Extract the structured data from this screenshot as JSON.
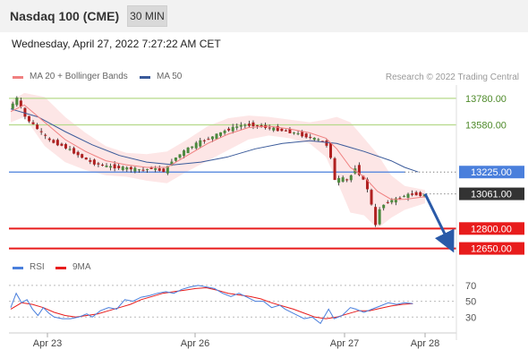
{
  "header": {
    "title": "Nasdaq 100 (CME)",
    "timeframe": "30 MIN"
  },
  "datetime": "Wednesday, April 27, 2022 7:27:22 AM CET",
  "legend": {
    "ma20": "MA 20 + Bollinger Bands",
    "ma50": "MA 50",
    "credit": "Research © 2022 Trading Central"
  },
  "rsi_legend": {
    "rsi": "RSI",
    "ma": "9MA"
  },
  "colors": {
    "ma20": "#f08080",
    "band": "#fde3e3",
    "ma50": "#3a5a9a",
    "resistance": "#b5d98a",
    "support": "#e81c1c",
    "pivot": "#4a7fdc",
    "current": "#333333",
    "up": "#4c8a3e",
    "down": "#b02020",
    "rsi": "#4a7fdc"
  },
  "chart_data": [
    {
      "type": "candlestick",
      "instrument": "Nasdaq 100 (CME)",
      "timeframe": "30 MIN",
      "x_ticks": [
        "Apr 23",
        "Apr 26",
        "Apr 27",
        "Apr 28"
      ],
      "ylim": [
        12600,
        13880
      ],
      "levels": [
        {
          "value": "13780.00",
          "kind": "resistance"
        },
        {
          "value": "13580.00",
          "kind": "resistance"
        },
        {
          "value": "13225.00",
          "kind": "pivot"
        },
        {
          "value": "13061.00",
          "kind": "current"
        },
        {
          "value": "12800.00",
          "kind": "support"
        },
        {
          "value": "12650.00",
          "kind": "support"
        }
      ],
      "forecast": {
        "from": 13061,
        "to": 12650
      },
      "price_path": [
        [
          0,
          13700
        ],
        [
          6,
          13780
        ],
        [
          12,
          13640
        ],
        [
          20,
          13560
        ],
        [
          30,
          13460
        ],
        [
          40,
          13420
        ],
        [
          50,
          13360
        ],
        [
          60,
          13300
        ],
        [
          70,
          13270
        ],
        [
          80,
          13260
        ],
        [
          90,
          13250
        ],
        [
          100,
          13240
        ],
        [
          105,
          13255
        ],
        [
          110,
          13240
        ],
        [
          115,
          13230
        ],
        [
          120,
          13310
        ],
        [
          130,
          13390
        ],
        [
          140,
          13450
        ],
        [
          150,
          13490
        ],
        [
          160,
          13540
        ],
        [
          170,
          13575
        ],
        [
          180,
          13580
        ],
        [
          190,
          13560
        ],
        [
          200,
          13540
        ],
        [
          210,
          13520
        ],
        [
          220,
          13490
        ],
        [
          230,
          13460
        ],
        [
          235,
          13420
        ],
        [
          238,
          13300
        ],
        [
          240,
          13160
        ],
        [
          245,
          13180
        ],
        [
          250,
          13160
        ],
        [
          255,
          13260
        ],
        [
          260,
          13180
        ],
        [
          265,
          13080
        ],
        [
          270,
          12820
        ],
        [
          273,
          12950
        ],
        [
          278,
          13000
        ],
        [
          285,
          13020
        ],
        [
          292,
          13050
        ],
        [
          298,
          13060
        ],
        [
          305,
          13050
        ]
      ],
      "ma20": [
        [
          0,
          13680
        ],
        [
          10,
          13730
        ],
        [
          25,
          13600
        ],
        [
          40,
          13470
        ],
        [
          55,
          13380
        ],
        [
          70,
          13310
        ],
        [
          85,
          13280
        ],
        [
          100,
          13260
        ],
        [
          115,
          13260
        ],
        [
          130,
          13350
        ],
        [
          145,
          13440
        ],
        [
          160,
          13510
        ],
        [
          175,
          13560
        ],
        [
          190,
          13570
        ],
        [
          205,
          13550
        ],
        [
          220,
          13520
        ],
        [
          232,
          13480
        ],
        [
          240,
          13400
        ],
        [
          250,
          13260
        ],
        [
          260,
          13190
        ],
        [
          270,
          13080
        ],
        [
          280,
          13020
        ],
        [
          290,
          13020
        ],
        [
          305,
          13040
        ]
      ],
      "bb_upper": [
        [
          0,
          13760
        ],
        [
          10,
          13820
        ],
        [
          25,
          13790
        ],
        [
          40,
          13640
        ],
        [
          55,
          13520
        ],
        [
          70,
          13420
        ],
        [
          85,
          13370
        ],
        [
          100,
          13360
        ],
        [
          115,
          13380
        ],
        [
          130,
          13470
        ],
        [
          145,
          13570
        ],
        [
          160,
          13630
        ],
        [
          175,
          13650
        ],
        [
          190,
          13640
        ],
        [
          205,
          13620
        ],
        [
          220,
          13600
        ],
        [
          232,
          13620
        ],
        [
          240,
          13640
        ],
        [
          250,
          13600
        ],
        [
          260,
          13480
        ],
        [
          270,
          13360
        ],
        [
          280,
          13200
        ],
        [
          290,
          13120
        ],
        [
          305,
          13090
        ]
      ],
      "bb_lower": [
        [
          0,
          13600
        ],
        [
          10,
          13640
        ],
        [
          25,
          13420
        ],
        [
          40,
          13300
        ],
        [
          55,
          13240
        ],
        [
          70,
          13200
        ],
        [
          85,
          13190
        ],
        [
          100,
          13160
        ],
        [
          115,
          13140
        ],
        [
          130,
          13230
        ],
        [
          145,
          13310
        ],
        [
          160,
          13390
        ],
        [
          175,
          13470
        ],
        [
          190,
          13500
        ],
        [
          205,
          13480
        ],
        [
          220,
          13440
        ],
        [
          232,
          13340
        ],
        [
          240,
          13160
        ],
        [
          250,
          12920
        ],
        [
          260,
          12900
        ],
        [
          270,
          12800
        ],
        [
          280,
          12880
        ],
        [
          290,
          12940
        ],
        [
          305,
          12990
        ]
      ],
      "ma50": [
        [
          0,
          13700
        ],
        [
          20,
          13640
        ],
        [
          40,
          13530
        ],
        [
          60,
          13430
        ],
        [
          80,
          13350
        ],
        [
          100,
          13300
        ],
        [
          120,
          13280
        ],
        [
          140,
          13300
        ],
        [
          160,
          13340
        ],
        [
          180,
          13400
        ],
        [
          200,
          13440
        ],
        [
          220,
          13460
        ],
        [
          240,
          13440
        ],
        [
          260,
          13380
        ],
        [
          280,
          13310
        ],
        [
          290,
          13260
        ],
        [
          300,
          13225
        ]
      ]
    },
    {
      "type": "line",
      "name": "RSI",
      "y_ticks": [
        70,
        50,
        30
      ],
      "ylim": [
        10,
        80
      ],
      "rsi": [
        [
          0,
          42
        ],
        [
          4,
          60
        ],
        [
          8,
          48
        ],
        [
          12,
          52
        ],
        [
          16,
          40
        ],
        [
          20,
          32
        ],
        [
          24,
          42
        ],
        [
          28,
          35
        ],
        [
          32,
          30
        ],
        [
          38,
          28
        ],
        [
          44,
          28
        ],
        [
          50,
          30
        ],
        [
          56,
          34
        ],
        [
          60,
          30
        ],
        [
          66,
          38
        ],
        [
          72,
          42
        ],
        [
          78,
          40
        ],
        [
          84,
          52
        ],
        [
          90,
          50
        ],
        [
          96,
          55
        ],
        [
          102,
          57
        ],
        [
          108,
          60
        ],
        [
          114,
          62
        ],
        [
          120,
          60
        ],
        [
          126,
          65
        ],
        [
          132,
          68
        ],
        [
          138,
          70
        ],
        [
          144,
          68
        ],
        [
          150,
          66
        ],
        [
          156,
          60
        ],
        [
          162,
          56
        ],
        [
          168,
          60
        ],
        [
          174,
          55
        ],
        [
          180,
          50
        ],
        [
          186,
          50
        ],
        [
          192,
          42
        ],
        [
          198,
          45
        ],
        [
          202,
          40
        ],
        [
          210,
          33
        ],
        [
          216,
          28
        ],
        [
          222,
          30
        ],
        [
          228,
          22
        ],
        [
          234,
          40
        ],
        [
          238,
          28
        ],
        [
          244,
          32
        ],
        [
          250,
          42
        ],
        [
          254,
          40
        ],
        [
          260,
          36
        ],
        [
          266,
          40
        ],
        [
          272,
          44
        ],
        [
          278,
          48
        ],
        [
          284,
          46
        ],
        [
          290,
          48
        ],
        [
          296,
          47
        ]
      ],
      "ma9": [
        [
          0,
          40
        ],
        [
          8,
          48
        ],
        [
          16,
          46
        ],
        [
          24,
          42
        ],
        [
          32,
          36
        ],
        [
          40,
          32
        ],
        [
          48,
          30
        ],
        [
          56,
          32
        ],
        [
          64,
          34
        ],
        [
          72,
          38
        ],
        [
          80,
          42
        ],
        [
          88,
          46
        ],
        [
          96,
          52
        ],
        [
          104,
          56
        ],
        [
          112,
          60
        ],
        [
          120,
          62
        ],
        [
          128,
          64
        ],
        [
          136,
          66
        ],
        [
          144,
          67
        ],
        [
          152,
          64
        ],
        [
          160,
          60
        ],
        [
          168,
          58
        ],
        [
          176,
          56
        ],
        [
          184,
          53
        ],
        [
          192,
          48
        ],
        [
          200,
          44
        ],
        [
          208,
          40
        ],
        [
          216,
          35
        ],
        [
          224,
          30
        ],
        [
          232,
          28
        ],
        [
          240,
          30
        ],
        [
          248,
          34
        ],
        [
          256,
          38
        ],
        [
          264,
          38
        ],
        [
          272,
          41
        ],
        [
          280,
          44
        ],
        [
          288,
          46
        ],
        [
          296,
          47
        ]
      ]
    }
  ]
}
